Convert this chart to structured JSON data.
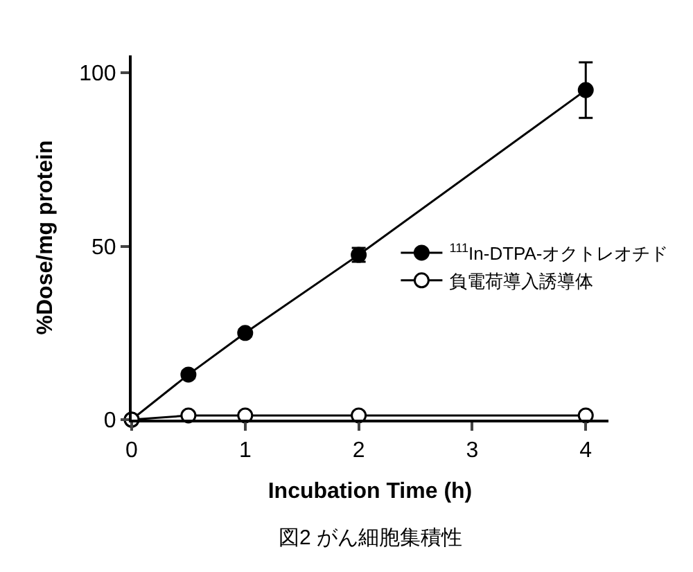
{
  "chart_data": {
    "type": "line",
    "xlabel": "Incubation Time (h)",
    "ylabel": "%Dose/mg protein",
    "annotations": [
      "図2 がん細胞集積性"
    ],
    "x": [
      0,
      0.5,
      1,
      2,
      4
    ],
    "series": [
      {
        "name": "$^{111}$In-DTPA-オクトレオチド",
        "color": "#000000",
        "values": [
          0,
          13,
          25,
          47.5,
          95
        ],
        "errors": [
          null,
          1,
          1,
          2,
          8
        ]
      },
      {
        "name": "負電荷導入誘導体",
        "color": "#000000",
        "values": [
          0,
          1.2,
          1.2,
          1.2,
          1.2
        ]
      }
    ],
    "xlim": [
      0,
      4.2
    ],
    "ylim": [
      0,
      105
    ],
    "xticks": [
      0,
      1,
      2,
      3,
      4
    ],
    "yticks": [
      0,
      50,
      100
    ],
    "legend": "right",
    "marker": "circle",
    "line_style": "solid"
  }
}
